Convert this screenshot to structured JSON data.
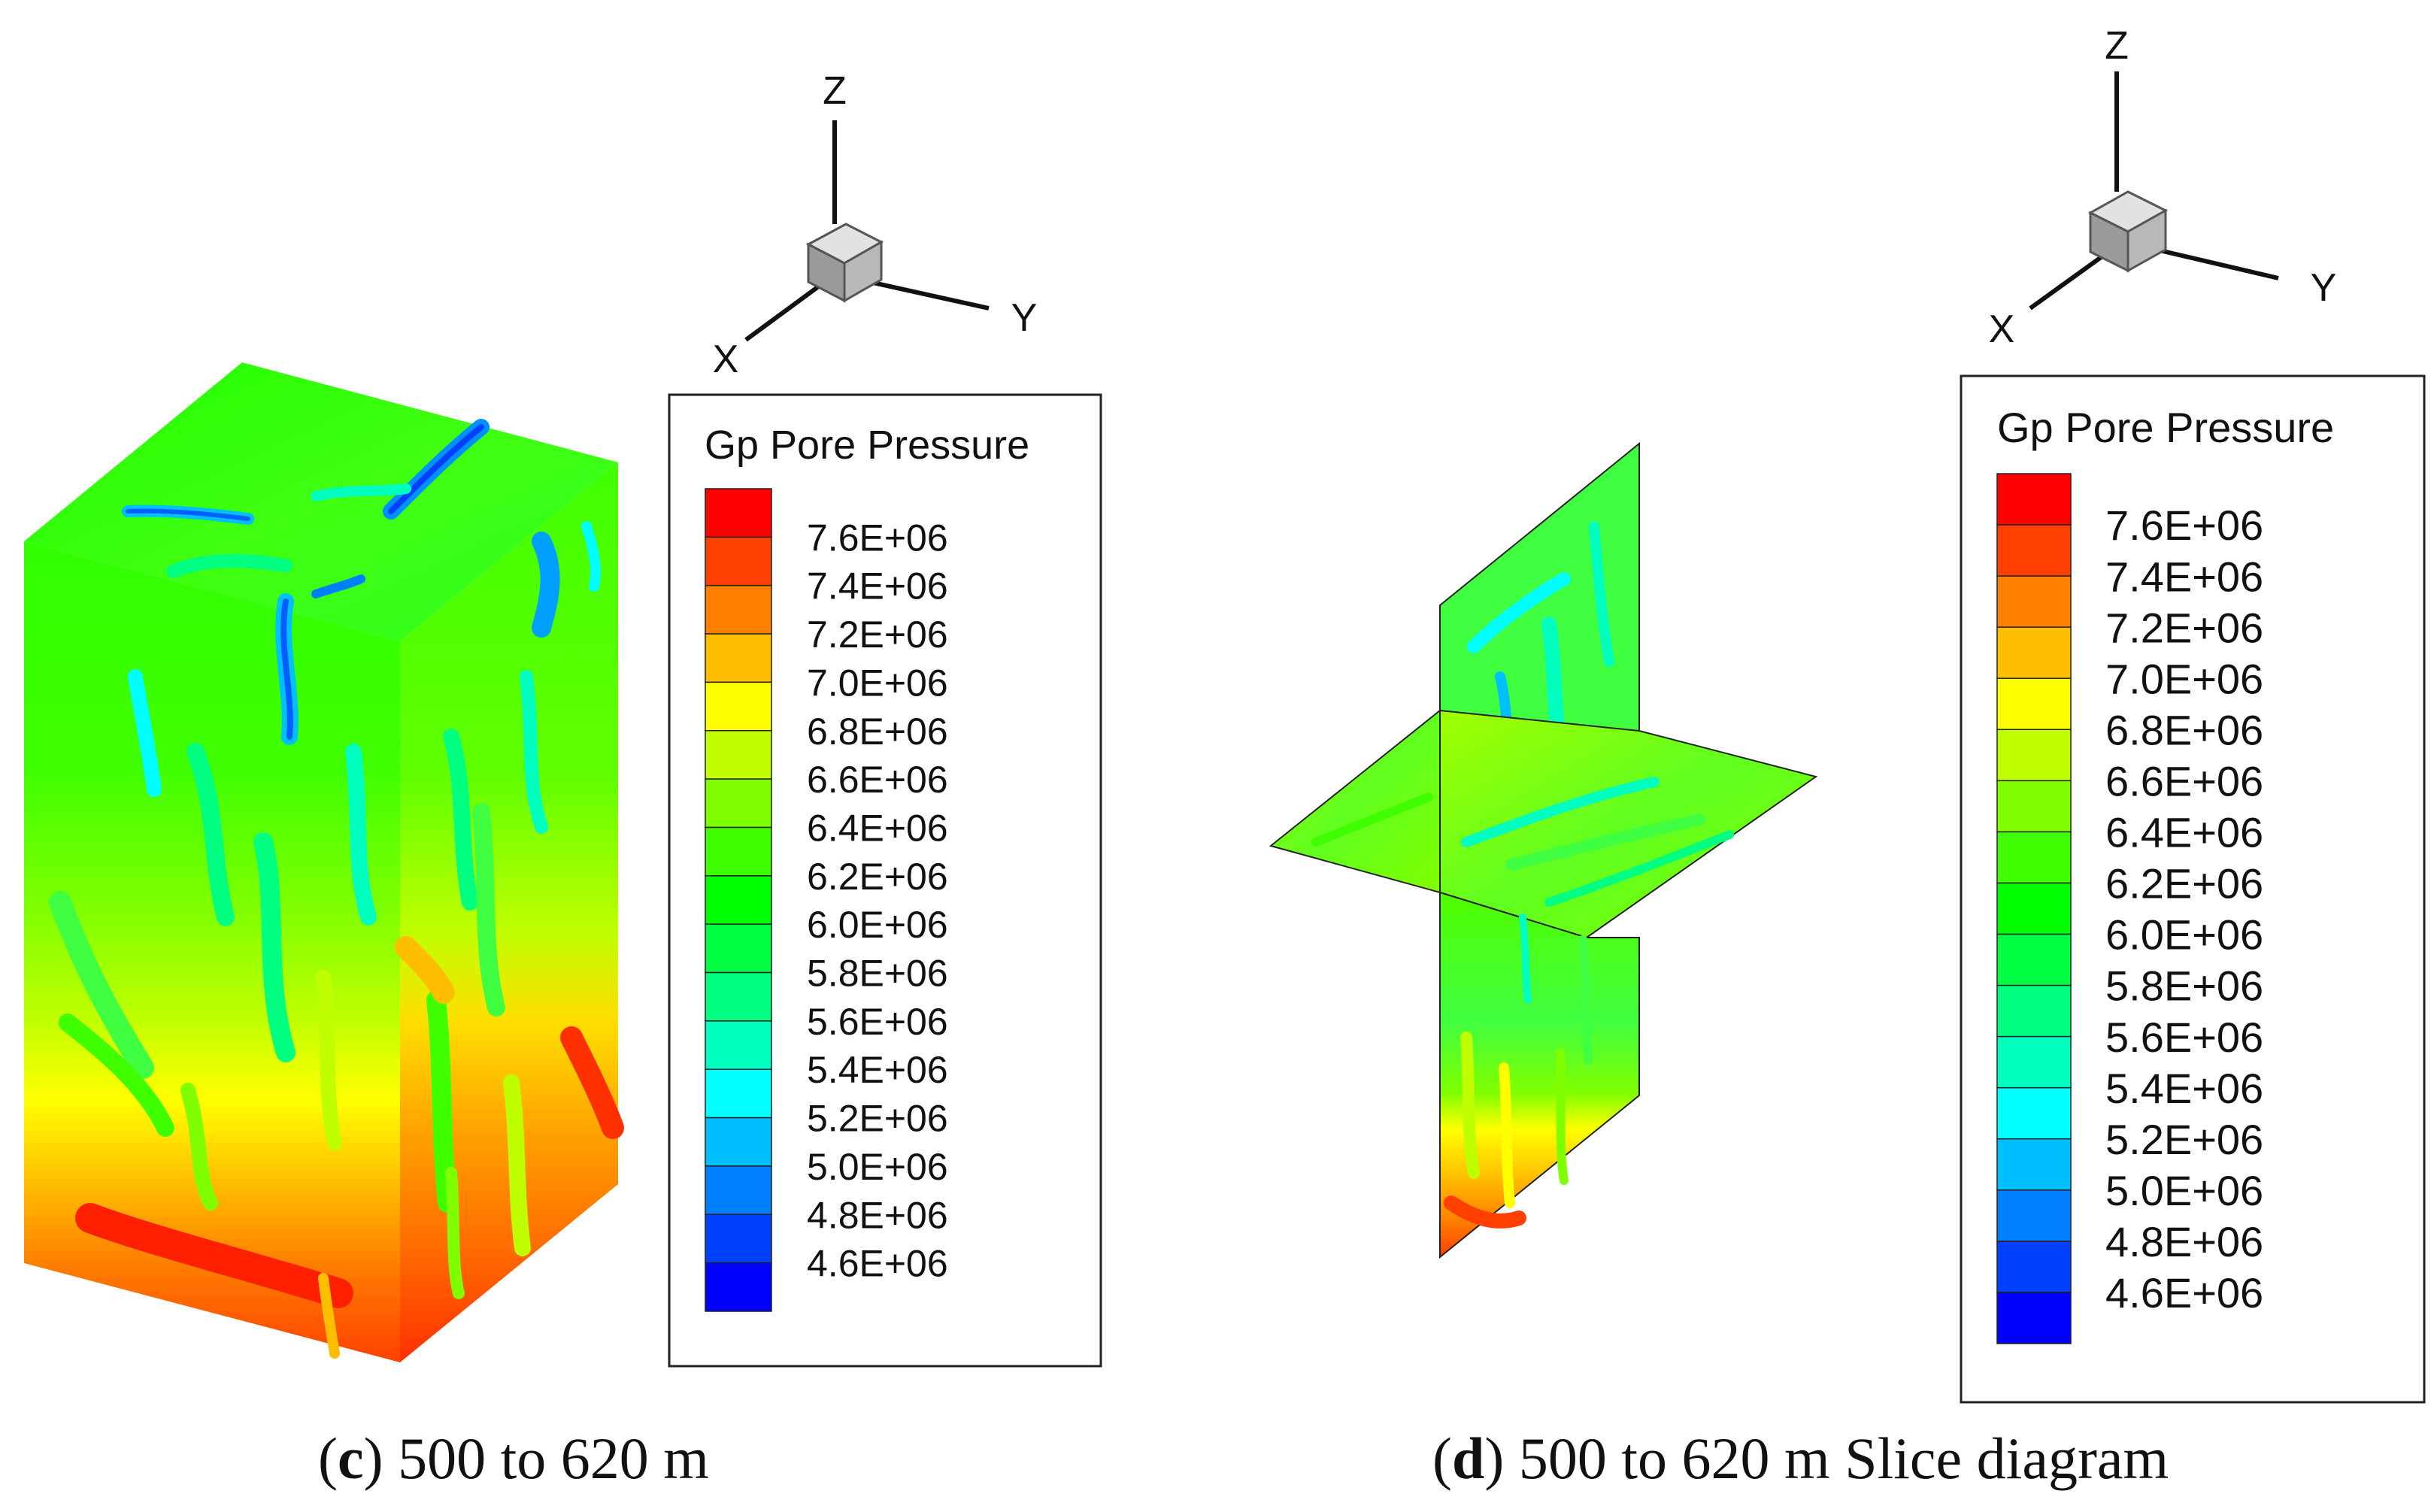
{
  "panels": [
    {
      "id": "c",
      "caption_letter": "c",
      "caption_text": "500 to 620 m",
      "legend_title": "Gp Pore Pressure",
      "axes": {
        "z": "Z",
        "x": "X",
        "y": "Y"
      }
    },
    {
      "id": "d",
      "caption_letter": "d",
      "caption_text": "500 to 620 m Slice diagram",
      "legend_title": "Gp Pore Pressure",
      "axes": {
        "z": "Z",
        "x": "X",
        "y": "Y"
      }
    }
  ],
  "legend_levels": [
    {
      "label": "7.6E+06",
      "color": "#ff0000"
    },
    {
      "label": "7.4E+06",
      "color": "#ff4000"
    },
    {
      "label": "7.2E+06",
      "color": "#ff7f00"
    },
    {
      "label": "7.0E+06",
      "color": "#ffbf00"
    },
    {
      "label": "6.8E+06",
      "color": "#ffff00"
    },
    {
      "label": "6.6E+06",
      "color": "#bfff00"
    },
    {
      "label": "6.4E+06",
      "color": "#80ff00"
    },
    {
      "label": "6.2E+06",
      "color": "#40ff00"
    },
    {
      "label": "6.0E+06",
      "color": "#00ff00"
    },
    {
      "label": "5.8E+06",
      "color": "#00ff40"
    },
    {
      "label": "5.6E+06",
      "color": "#00ff80"
    },
    {
      "label": "5.4E+06",
      "color": "#00ffbf"
    },
    {
      "label": "5.2E+06",
      "color": "#00ffff"
    },
    {
      "label": "5.0E+06",
      "color": "#00bfff"
    },
    {
      "label": "4.8E+06",
      "color": "#0080ff"
    },
    {
      "label": "4.6E+06",
      "color": "#0040ff"
    }
  ],
  "legend_bottom_color": "#0000ff"
}
